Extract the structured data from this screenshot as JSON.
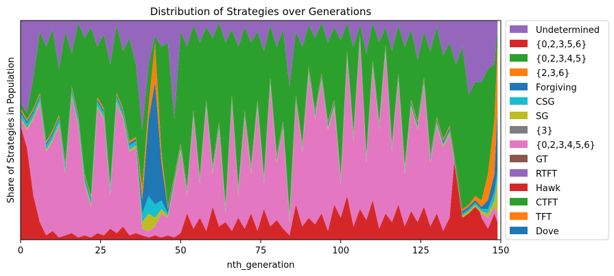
{
  "chart_data": {
    "type": "area",
    "stacked": true,
    "normalized": true,
    "title": "Distribution of Strategies over Generations",
    "xlabel": "nth_generation",
    "ylabel": "Share of Strategies in Population",
    "xlim": [
      0,
      150
    ],
    "ylim": [
      0,
      1
    ],
    "x_ticks": [
      "0",
      "25",
      "50",
      "75",
      "100",
      "125",
      "150"
    ],
    "grid": false,
    "legend_position": "outside-right",
    "legend": [
      "Undetermined",
      "{0,2,3,5,6}",
      "{0,2,3,4,5}",
      "{2,3,6}",
      "Forgiving",
      "CSG",
      "SG",
      "{3}",
      "{0,2,3,4,5,6}",
      "GT",
      "RTFT",
      "Hawk",
      "CTFT",
      "TFT",
      "Dove"
    ],
    "stack_order_bottom_to_top": [
      "Dove",
      "TFT",
      "CTFT",
      "Hawk",
      "RTFT",
      "GT",
      "{0,2,3,4,5,6}",
      "{3}",
      "SG",
      "CSG",
      "Forgiving",
      "{2,3,6}",
      "{0,2,3,4,5}",
      "{0,2,3,5,6}",
      "Undetermined"
    ],
    "colors": {
      "Undetermined": "#9467bd",
      "{0,2,3,5,6}": "#d62728",
      "{0,2,3,4,5}": "#2ca02c",
      "{2,3,6}": "#ff7f0e",
      "Forgiving": "#1f77b4",
      "CSG": "#17becf",
      "SG": "#bcbd22",
      "{3}": "#7f7f7f",
      "{0,2,3,4,5,6}": "#e377c2",
      "GT": "#8c564b",
      "RTFT": "#9467bd",
      "Hawk": "#d62728",
      "CTFT": "#2ca02c",
      "TFT": "#ff7f0e",
      "Dove": "#1f77b4"
    },
    "cumulative_boundaries": {
      "x": [
        0,
        2,
        4,
        6,
        8,
        10,
        12,
        14,
        16,
        18,
        20,
        22,
        24,
        26,
        28,
        30,
        32,
        34,
        36,
        38,
        40,
        42,
        44,
        46,
        48,
        50,
        52,
        54,
        56,
        58,
        60,
        62,
        64,
        66,
        68,
        70,
        72,
        74,
        76,
        78,
        80,
        82,
        84,
        86,
        88,
        90,
        92,
        94,
        96,
        98,
        100,
        102,
        104,
        106,
        108,
        110,
        112,
        114,
        116,
        118,
        120,
        122,
        124,
        126,
        128,
        130,
        132,
        134,
        136,
        138,
        140,
        142,
        144,
        146,
        148,
        149
      ],
      "Hawk_top": [
        0.52,
        0.42,
        0.2,
        0.08,
        0.02,
        0.04,
        0.01,
        0.02,
        0.03,
        0.01,
        0.02,
        0.01,
        0.03,
        0.02,
        0.05,
        0.03,
        0.06,
        0.02,
        0.03,
        0.02,
        0.01,
        0.02,
        0.01,
        0.02,
        0.01,
        0.03,
        0.12,
        0.05,
        0.1,
        0.04,
        0.15,
        0.06,
        0.08,
        0.04,
        0.1,
        0.05,
        0.12,
        0.04,
        0.14,
        0.06,
        0.09,
        0.05,
        0.02,
        0.16,
        0.06,
        0.1,
        0.07,
        0.12,
        0.04,
        0.16,
        0.1,
        0.2,
        0.06,
        0.14,
        0.09,
        0.18,
        0.05,
        0.12,
        0.08,
        0.16,
        0.06,
        0.13,
        0.08,
        0.15,
        0.06,
        0.12,
        0.04,
        0.1,
        0.45,
        0.62,
        0.55,
        0.2,
        0.1,
        0.05,
        0.12,
        0.08
      ],
      "Pink_top": [
        0.55,
        0.5,
        0.55,
        0.62,
        0.4,
        0.45,
        0.52,
        0.3,
        0.65,
        0.52,
        0.25,
        0.15,
        0.6,
        0.55,
        0.2,
        0.62,
        0.55,
        0.4,
        0.42,
        0.05,
        0.04,
        0.06,
        0.12,
        0.1,
        0.25,
        0.4,
        0.2,
        0.55,
        0.25,
        0.6,
        0.3,
        0.5,
        0.12,
        0.62,
        0.2,
        0.55,
        0.3,
        0.6,
        0.25,
        0.7,
        0.35,
        0.5,
        0.08,
        0.62,
        0.4,
        0.75,
        0.55,
        0.72,
        0.5,
        0.6,
        0.25,
        0.82,
        0.45,
        0.9,
        0.35,
        0.78,
        0.5,
        0.85,
        0.4,
        0.72,
        0.3,
        0.6,
        0.5,
        0.7,
        0.35,
        0.52,
        0.42,
        0.48,
        0.3,
        0.1,
        0.12,
        0.15,
        0.12,
        0.1,
        0.15,
        0.12
      ],
      "SG_top": [
        0.56,
        0.51,
        0.56,
        0.63,
        0.41,
        0.46,
        0.53,
        0.31,
        0.66,
        0.53,
        0.26,
        0.16,
        0.61,
        0.56,
        0.21,
        0.63,
        0.56,
        0.41,
        0.43,
        0.08,
        0.12,
        0.1,
        0.14,
        0.11,
        0.26,
        0.41,
        0.21,
        0.56,
        0.26,
        0.61,
        0.31,
        0.51,
        0.13,
        0.63,
        0.21,
        0.56,
        0.31,
        0.61,
        0.26,
        0.71,
        0.36,
        0.51,
        0.09,
        0.63,
        0.41,
        0.76,
        0.56,
        0.73,
        0.51,
        0.61,
        0.26,
        0.83,
        0.46,
        0.91,
        0.36,
        0.79,
        0.51,
        0.86,
        0.41,
        0.73,
        0.31,
        0.61,
        0.51,
        0.71,
        0.36,
        0.53,
        0.43,
        0.49,
        0.31,
        0.11,
        0.13,
        0.16,
        0.13,
        0.12,
        0.18,
        0.28
      ],
      "CSG_top": [
        0.58,
        0.53,
        0.58,
        0.65,
        0.43,
        0.48,
        0.55,
        0.33,
        0.68,
        0.55,
        0.28,
        0.18,
        0.63,
        0.58,
        0.23,
        0.65,
        0.58,
        0.43,
        0.45,
        0.12,
        0.2,
        0.16,
        0.18,
        0.12,
        0.27,
        0.42,
        0.22,
        0.57,
        0.27,
        0.62,
        0.32,
        0.52,
        0.14,
        0.64,
        0.22,
        0.57,
        0.32,
        0.62,
        0.27,
        0.72,
        0.37,
        0.52,
        0.1,
        0.64,
        0.42,
        0.77,
        0.57,
        0.74,
        0.52,
        0.62,
        0.27,
        0.84,
        0.47,
        0.92,
        0.37,
        0.8,
        0.52,
        0.87,
        0.42,
        0.74,
        0.32,
        0.62,
        0.52,
        0.72,
        0.37,
        0.54,
        0.44,
        0.5,
        0.32,
        0.12,
        0.14,
        0.17,
        0.14,
        0.14,
        0.22,
        0.32
      ],
      "Forgiving_top": [
        0.59,
        0.54,
        0.59,
        0.66,
        0.44,
        0.49,
        0.56,
        0.34,
        0.69,
        0.56,
        0.29,
        0.19,
        0.64,
        0.59,
        0.24,
        0.66,
        0.59,
        0.44,
        0.46,
        0.18,
        0.55,
        0.72,
        0.35,
        0.14,
        0.28,
        0.43,
        0.23,
        0.58,
        0.28,
        0.63,
        0.33,
        0.53,
        0.15,
        0.65,
        0.23,
        0.58,
        0.33,
        0.63,
        0.28,
        0.73,
        0.38,
        0.53,
        0.11,
        0.65,
        0.43,
        0.78,
        0.58,
        0.75,
        0.53,
        0.63,
        0.28,
        0.85,
        0.48,
        0.93,
        0.38,
        0.81,
        0.53,
        0.88,
        0.43,
        0.75,
        0.33,
        0.63,
        0.53,
        0.73,
        0.38,
        0.55,
        0.45,
        0.51,
        0.33,
        0.13,
        0.15,
        0.18,
        0.15,
        0.18,
        0.3,
        0.6
      ],
      "Orange_top": [
        0.6,
        0.55,
        0.6,
        0.67,
        0.45,
        0.5,
        0.57,
        0.35,
        0.7,
        0.57,
        0.3,
        0.2,
        0.65,
        0.6,
        0.25,
        0.67,
        0.6,
        0.45,
        0.47,
        0.24,
        0.62,
        0.9,
        0.4,
        0.15,
        0.29,
        0.44,
        0.24,
        0.59,
        0.29,
        0.64,
        0.34,
        0.54,
        0.16,
        0.66,
        0.24,
        0.59,
        0.34,
        0.64,
        0.29,
        0.74,
        0.39,
        0.54,
        0.12,
        0.66,
        0.44,
        0.79,
        0.59,
        0.76,
        0.54,
        0.64,
        0.29,
        0.86,
        0.49,
        0.94,
        0.39,
        0.82,
        0.54,
        0.89,
        0.44,
        0.76,
        0.34,
        0.64,
        0.54,
        0.74,
        0.39,
        0.56,
        0.46,
        0.52,
        0.34,
        0.14,
        0.16,
        0.2,
        0.18,
        0.3,
        0.55,
        0.9
      ],
      "Green_top": [
        0.62,
        0.58,
        0.74,
        0.95,
        0.88,
        0.96,
        0.78,
        0.95,
        0.85,
        0.99,
        0.92,
        0.97,
        0.88,
        0.94,
        0.8,
        0.98,
        0.86,
        0.92,
        0.8,
        0.5,
        0.8,
        0.93,
        0.88,
        0.9,
        0.55,
        0.95,
        0.88,
        0.98,
        0.9,
        0.97,
        0.92,
        0.99,
        0.9,
        0.96,
        0.88,
        0.97,
        0.9,
        0.95,
        0.86,
        0.98,
        0.88,
        0.96,
        0.7,
        0.95,
        0.88,
        0.98,
        0.92,
        0.99,
        0.9,
        0.97,
        0.91,
        0.99,
        0.88,
        0.98,
        0.85,
        0.99,
        0.9,
        0.97,
        0.86,
        0.98,
        0.88,
        0.96,
        0.82,
        0.95,
        0.86,
        0.97,
        0.84,
        0.9,
        0.8,
        0.88,
        0.66,
        0.72,
        0.72,
        0.78,
        0.8,
        0.96
      ]
    }
  }
}
